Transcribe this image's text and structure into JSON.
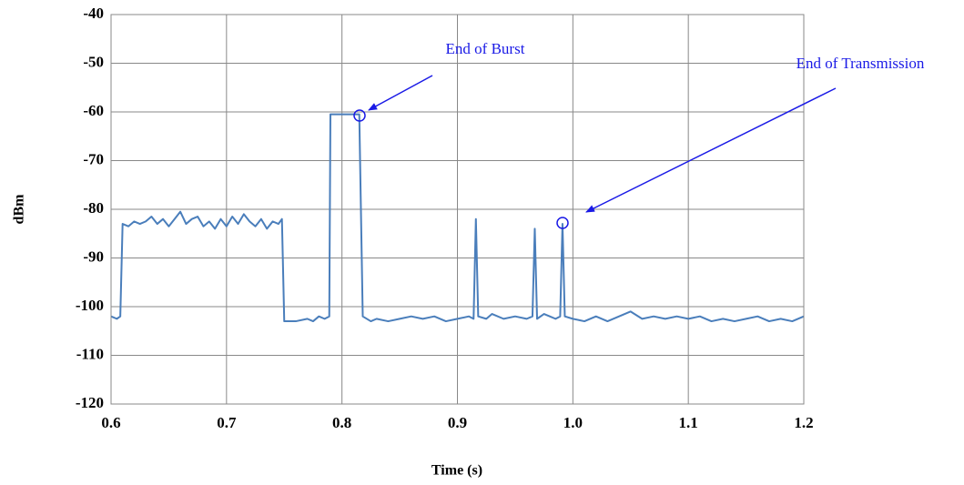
{
  "chart_data": {
    "type": "line",
    "xlabel": "Time (s)",
    "ylabel": "dBm",
    "xlim": [
      0.6,
      1.2
    ],
    "xticks": [
      0.6,
      0.7,
      0.8,
      0.9,
      {
        "value": 1,
        "label": "1.0"
      },
      1.1,
      1.2
    ],
    "ylim": [
      -120,
      -40
    ],
    "yticks": [
      -40,
      -50,
      -60,
      -70,
      -80,
      -90,
      -100,
      -110,
      -120
    ],
    "grid": true,
    "annotations": [
      {
        "text": "End of Burst"
      },
      {
        "text": "End of Transmission"
      }
    ],
    "series": [
      {
        "color": "#4a7ebb",
        "x": [
          0.6,
          0.605,
          0.608,
          0.61,
          0.615,
          0.62,
          0.625,
          0.63,
          0.635,
          0.64,
          0.645,
          0.65,
          0.655,
          0.66,
          0.665,
          0.67,
          0.675,
          0.68,
          0.685,
          0.69,
          0.695,
          0.7,
          0.705,
          0.71,
          0.715,
          0.72,
          0.725,
          0.73,
          0.735,
          0.74,
          0.745,
          0.748,
          0.75,
          0.76,
          0.77,
          0.775,
          0.78,
          0.785,
          0.789,
          0.79,
          0.8,
          0.81,
          0.815,
          0.818,
          0.825,
          0.83,
          0.84,
          0.85,
          0.86,
          0.87,
          0.88,
          0.89,
          0.9,
          0.91,
          0.914,
          0.916,
          0.918,
          0.925,
          0.93,
          0.94,
          0.95,
          0.96,
          0.965,
          0.967,
          0.969,
          0.975,
          0.98,
          0.985,
          0.989,
          0.991,
          0.993,
          1.0,
          1.01,
          1.02,
          1.03,
          1.04,
          1.05,
          1.06,
          1.07,
          1.08,
          1.09,
          1.1,
          1.11,
          1.12,
          1.13,
          1.14,
          1.15,
          1.16,
          1.17,
          1.18,
          1.19,
          1.2
        ],
        "values": [
          -102,
          -102.5,
          -102,
          -83,
          -83.5,
          -82.5,
          -83,
          -82.5,
          -81.5,
          -83,
          -82,
          -83.5,
          -82,
          -80.5,
          -83,
          -82,
          -81.5,
          -83.5,
          -82.5,
          -84,
          -82,
          -83.5,
          -81.5,
          -83,
          -81,
          -82.5,
          -83.5,
          -82,
          -84,
          -82.5,
          -83,
          -82,
          -103,
          -103,
          -102.5,
          -103,
          -102,
          -102.5,
          -102,
          -60.5,
          -60.5,
          -60.5,
          -60.5,
          -102,
          -103,
          -102.5,
          -103,
          -102.5,
          -102,
          -102.5,
          -102,
          -103,
          -102.5,
          -102,
          -102.5,
          -82,
          -102,
          -102.5,
          -101.5,
          -102.5,
          -102,
          -102.5,
          -102,
          -84,
          -102.5,
          -101.5,
          -102,
          -102.5,
          -102,
          -83,
          -102,
          -102.5,
          -103,
          -102,
          -103,
          -102,
          -101,
          -102.5,
          -102,
          -102.5,
          -102,
          -102.5,
          -102,
          -103,
          -102.5,
          -103,
          -102.5,
          -102,
          -103,
          -102.5,
          -103,
          -102
        ]
      }
    ]
  }
}
